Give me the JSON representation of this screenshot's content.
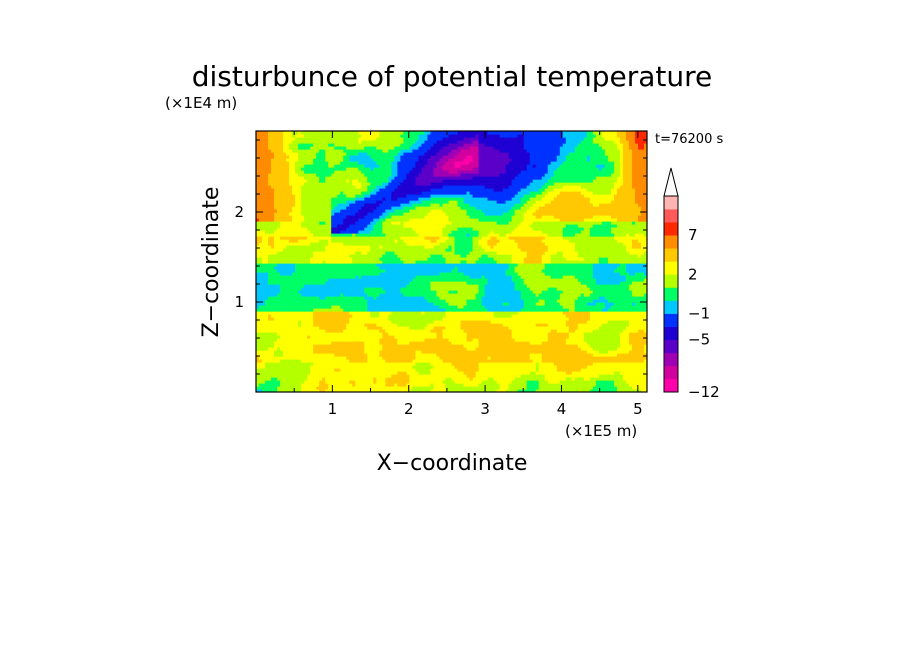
{
  "chart_data": {
    "type": "heatmap",
    "title": "disturbunce of potential temperature",
    "xlabel": "X−coordinate",
    "ylabel": "Z−coordinate",
    "x_unit": "(×1E5 m)",
    "y_unit": "(×1E4 m)",
    "time_label": "t=76200 s",
    "xlim": [
      0,
      5.12
    ],
    "ylim": [
      0,
      2.9
    ],
    "x_ticks": [
      1,
      2,
      3,
      4,
      5
    ],
    "x_tick_labels": [
      "1",
      "2",
      "3",
      "4",
      "5"
    ],
    "y_ticks": [
      1,
      2
    ],
    "y_tick_labels": [
      "1",
      "2"
    ],
    "colorbar": {
      "levels": [
        -12,
        -11,
        -9,
        -7,
        -5,
        -3,
        -1,
        0,
        1,
        2,
        3,
        5,
        7,
        9,
        11
      ],
      "colors": [
        "#ff00aa",
        "#d2009e",
        "#a000b4",
        "#5a00c8",
        "#1e00d2",
        "#0032ff",
        "#00c8ff",
        "#00ff64",
        "#b4ff00",
        "#ffff00",
        "#ffc800",
        "#ff8c00",
        "#ff2800",
        "#ff5a5a",
        "#ffb4b4"
      ],
      "tick_labels": [
        {
          "value": 7,
          "label": "7"
        },
        {
          "value": 2,
          "label": "2"
        },
        {
          "value": -1,
          "label": "−1"
        },
        {
          "value": -5,
          "label": "−5"
        },
        {
          "value": -12,
          "label": "−12"
        }
      ]
    }
  }
}
